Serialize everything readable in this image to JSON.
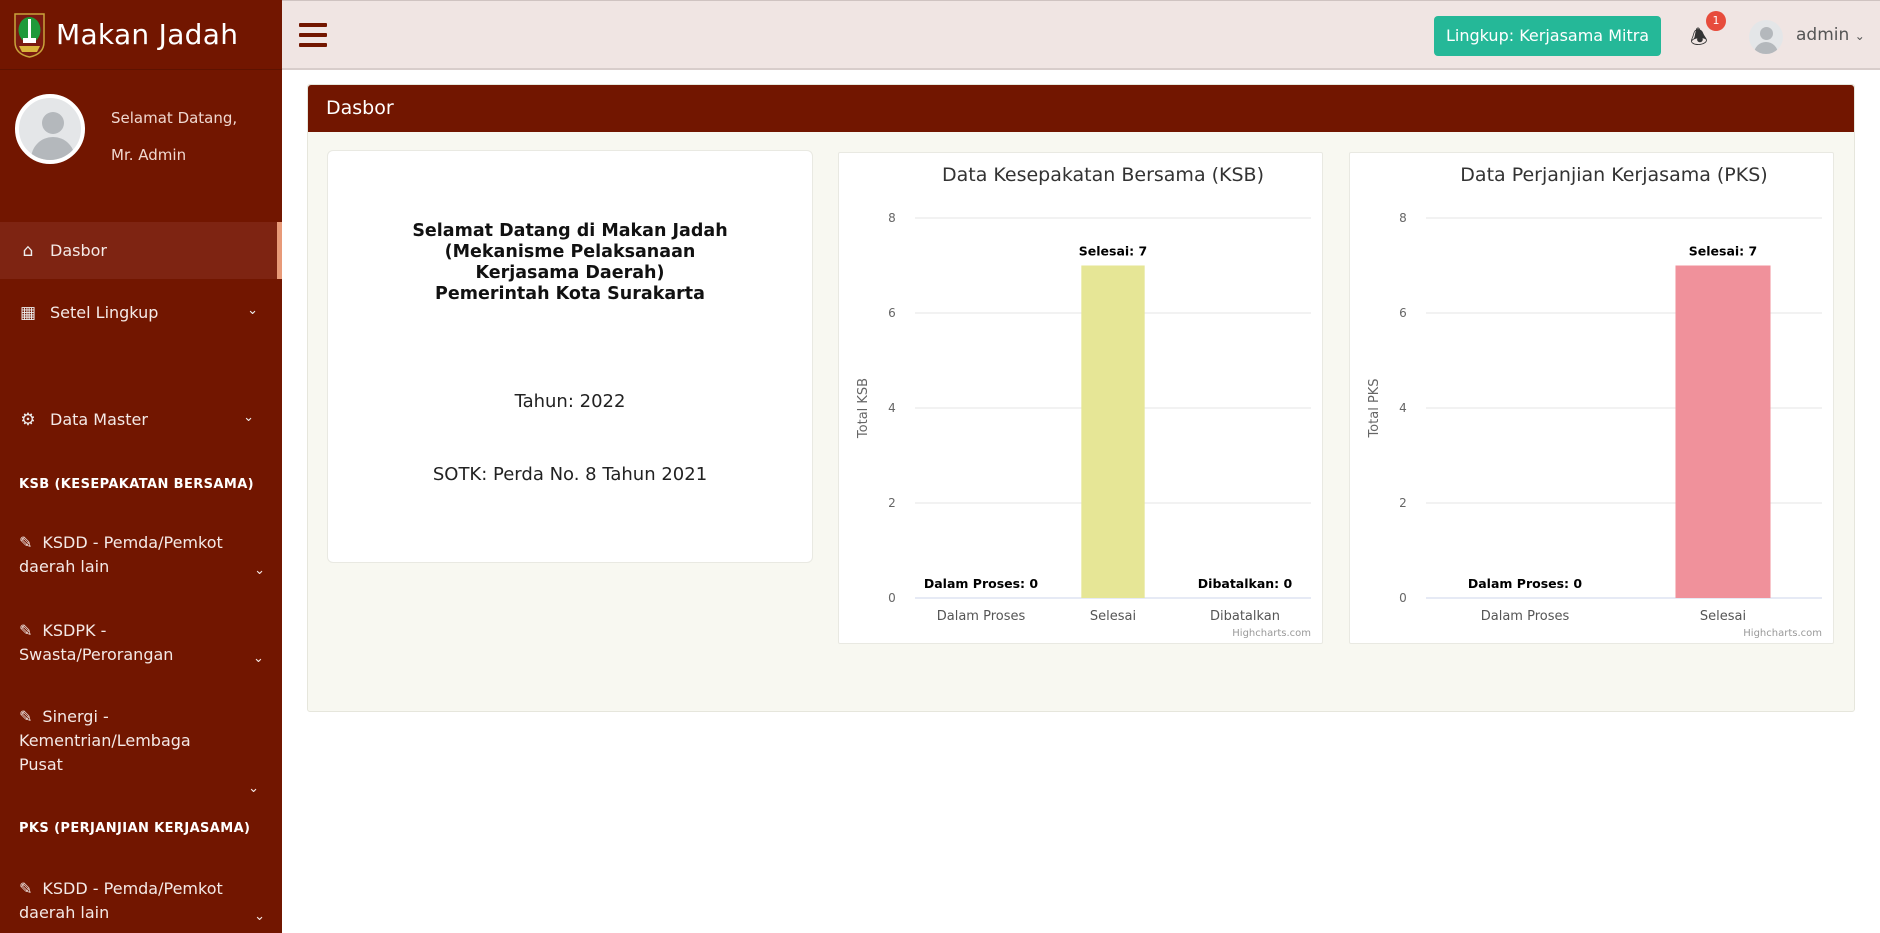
{
  "brand": {
    "name": "Makan Jadah"
  },
  "profile": {
    "greeting": "Selamat Datang,",
    "name": "Mr. Admin"
  },
  "sidebar": {
    "items": [
      {
        "label": "Dasbor",
        "icon": "home-icon"
      },
      {
        "label": "Setel Lingkup",
        "icon": "sitemap-icon"
      },
      {
        "label": "Data Master",
        "icon": "gear-icon"
      }
    ],
    "sections": [
      "KSB (KESEPAKATAN BERSAMA)",
      "PKS (PERJANJIAN KERJASAMA)"
    ],
    "ksb_items": [
      "KSDD - Pemda/Pemkot daerah lain",
      "KSDPK - Swasta/Perorangan",
      "Sinergi - Kementrian/Lembaga Pusat"
    ],
    "pks_items": [
      "KSDD - Pemda/Pemkot daerah lain"
    ]
  },
  "topbar": {
    "scope_button": "Lingkup: Kerjasama Mitra",
    "notifications": "1",
    "user": "admin"
  },
  "colors": {
    "brand": "#721600",
    "accent": "#25b898",
    "ksb_bar": "#e6e696",
    "pks_bar": "#f0919b"
  },
  "panel": {
    "title": "Dasbor"
  },
  "welcome": {
    "title_lines": [
      "Selamat Datang di Makan Jadah",
      "(Mekanisme Pelaksanaan",
      "Kerjasama Daerah)",
      "Pemerintah Kota Surakarta"
    ],
    "year": "Tahun: 2022",
    "sotk": "SOTK: Perda No. 8 Tahun 2021"
  },
  "chart_data": [
    {
      "type": "bar",
      "title": "Data Kesepakatan Bersama (KSB)",
      "ylabel": "Total KSB",
      "xlabel": "",
      "categories": [
        "Dalam Proses",
        "Selesai",
        "Dibatalkan"
      ],
      "values": [
        0,
        7,
        0
      ],
      "data_labels": [
        "Dalam Proses: 0",
        "Selesai: 7",
        "Dibatalkan: 0"
      ],
      "ylim": [
        0,
        8
      ],
      "yticks": [
        "0",
        "2",
        "4",
        "6",
        "8"
      ],
      "grid": true,
      "color": "#e6e696",
      "credit": "Highcharts.com"
    },
    {
      "type": "bar",
      "title": "Data Perjanjian Kerjasama (PKS)",
      "ylabel": "Total PKS",
      "xlabel": "",
      "categories": [
        "Dalam Proses",
        "Selesai"
      ],
      "values": [
        0,
        7
      ],
      "data_labels": [
        "Dalam Proses: 0",
        "Selesai: 7"
      ],
      "ylim": [
        0,
        8
      ],
      "yticks": [
        "0",
        "2",
        "4",
        "6",
        "8"
      ],
      "grid": true,
      "color": "#f0919b",
      "credit": "Highcharts.com"
    }
  ]
}
